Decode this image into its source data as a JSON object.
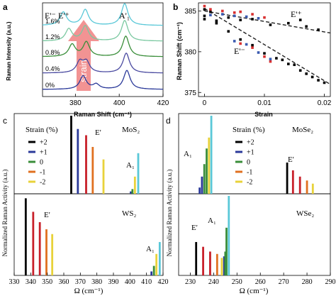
{
  "colors": {
    "strain_plus2": "#000000",
    "strain_plus1": "#2b3a9a",
    "strain_0": "#3a8e3a",
    "strain_minus1": "#e07020",
    "strain_minus2": "#e8d23a",
    "ws_plus1": "#c8202a",
    "ws_plus2": "#000000",
    "cyan": "#5ac8d8",
    "arrow": "#f08080"
  },
  "chart_data": [
    {
      "id": "a",
      "type": "line",
      "panel_label": "a",
      "xlabel": "Raman Shift (cm⁻¹)",
      "ylabel": "Raman Intensity (a.u.)",
      "xlim": [
        365,
        420
      ],
      "x_ticks": [
        "380",
        "400",
        "420"
      ],
      "x_tick_values": [
        380,
        400,
        420
      ],
      "peak_labels": [
        "E'⁻",
        "E'⁺",
        "A'₁"
      ],
      "arrow_text": "strain",
      "series": [
        {
          "name": "0%",
          "color": "#2b3a9a",
          "peaks": [
            [
              383.5,
              0.55
            ],
            [
              389.5,
              0.2
            ],
            [
              403.5,
              0.78
            ]
          ]
        },
        {
          "name": "0.4%",
          "color": "#4a4aa0",
          "peaks": [
            [
              382.0,
              0.45
            ],
            [
              385.0,
              0.45
            ],
            [
              403.2,
              0.82
            ]
          ]
        },
        {
          "name": "0.8%",
          "color": "#3a8e3a",
          "peaks": [
            [
              378.5,
              0.5
            ],
            [
              385.0,
              0.6
            ],
            [
              403.0,
              0.85
            ]
          ]
        },
        {
          "name": "1.2%",
          "color": "#7ac8a0",
          "peaks": [
            [
              377.0,
              0.5
            ],
            [
              384.5,
              0.62
            ],
            [
              402.5,
              0.85
            ]
          ]
        },
        {
          "name": "1.6%",
          "color": "#5ac8d8",
          "peaks": [
            [
              374.5,
              0.55
            ],
            [
              384.5,
              0.65
            ],
            [
              402.5,
              0.9
            ]
          ]
        }
      ]
    },
    {
      "id": "b",
      "type": "scatter",
      "panel_label": "b",
      "xlabel": "Strain",
      "ylabel": "Raman Shift (cm⁻¹)",
      "xlim": [
        -0.001,
        0.021
      ],
      "ylim": [
        374.5,
        386.0
      ],
      "x_ticks": [
        "0",
        "0.01",
        "0.02"
      ],
      "x_tick_values": [
        0,
        0.01,
        0.02
      ],
      "y_ticks": [
        "375",
        "380",
        "385"
      ],
      "y_tick_values": [
        375,
        380,
        385
      ],
      "annotations": [
        "E'⁺",
        "E'⁻"
      ],
      "series": [
        {
          "name": "E'+ black",
          "color": "#000000",
          "points": [
            [
              0,
              385.2
            ],
            [
              0,
              384.4
            ],
            [
              0.001,
              384.9
            ],
            [
              0.002,
              383.8
            ],
            [
              0.004,
              384.2
            ],
            [
              0.006,
              383.9
            ],
            [
              0.008,
              384.0
            ],
            [
              0.011,
              383.3
            ],
            [
              0.014,
              383.5
            ],
            [
              0.016,
              383.9
            ],
            [
              0.017,
              383.1
            ],
            [
              0.019,
              382.7
            ]
          ]
        },
        {
          "name": "E'+ red",
          "color": "#d83030",
          "points": [
            [
              0,
              385.6
            ],
            [
              0.001,
              385.2
            ],
            [
              0.003,
              385.0
            ],
            [
              0.005,
              384.8
            ],
            [
              0.006,
              384.9
            ],
            [
              0.008,
              384.6
            ],
            [
              0.01,
              384.2
            ]
          ]
        },
        {
          "name": "E'+ blue",
          "color": "#3a5ab0",
          "points": [
            [
              0.001,
              384.5
            ],
            [
              0.003,
              384.6
            ],
            [
              0.005,
              384.4
            ],
            [
              0.007,
              384.3
            ],
            [
              0.009,
              384.1
            ]
          ]
        },
        {
          "name": "E'- black",
          "color": "#000000",
          "points": [
            [
              0,
              384.0
            ],
            [
              0.002,
              383.5
            ],
            [
              0.004,
              382.5
            ],
            [
              0.006,
              381.5
            ],
            [
              0.008,
              380.8
            ],
            [
              0.01,
              379.8
            ],
            [
              0.012,
              379.2
            ],
            [
              0.013,
              379.0
            ],
            [
              0.014,
              378.5
            ],
            [
              0.015,
              378.4
            ],
            [
              0.016,
              377.7
            ],
            [
              0.017,
              377.3
            ],
            [
              0.018,
              376.9
            ],
            [
              0.019,
              376.5
            ],
            [
              0.02,
              376.2
            ]
          ]
        },
        {
          "name": "E'- red",
          "color": "#d83030",
          "points": [
            [
              0.006,
              381.0
            ],
            [
              0.008,
              380.5
            ],
            [
              0.01,
              379.4
            ],
            [
              0.011,
              378.8
            ]
          ]
        },
        {
          "name": "E'- blue",
          "color": "#3a5ab0",
          "points": [
            [
              0.005,
              381.3
            ],
            [
              0.007,
              380.9
            ],
            [
              0.009,
              379.9
            ],
            [
              0.011,
              379.1
            ]
          ]
        }
      ],
      "fits": [
        {
          "from": [
            0,
            385.0
          ],
          "to": [
            0.021,
            382.3
          ]
        },
        {
          "from": [
            0,
            385.3
          ],
          "to": [
            0.021,
            376.0
          ]
        }
      ]
    },
    {
      "id": "c",
      "type": "bar",
      "panel_label": "c",
      "xlabel": "Ω (cm⁻¹)",
      "ylabel": "Normalized Raman Activity (a.u.)",
      "xlim": [
        330,
        420
      ],
      "x_ticks": [
        "330",
        "340",
        "350",
        "360",
        "370",
        "380",
        "390",
        "400",
        "410",
        "420"
      ],
      "x_tick_values": [
        330,
        340,
        350,
        360,
        370,
        380,
        390,
        400,
        410,
        420
      ],
      "legend_title": "Strain (%)",
      "legend_labels": [
        "+2",
        "+1",
        "0",
        "-1",
        "-2"
      ],
      "subplots": [
        {
          "material": "MoS₂",
          "mode_labels": [
            "E'",
            "A₁"
          ],
          "bars": [
            {
              "x": 364.5,
              "h": 1.0,
              "c": "#000000"
            },
            {
              "x": 368.5,
              "h": 0.83,
              "c": "#2b3a9a"
            },
            {
              "x": 373.5,
              "h": 0.75,
              "c": "#c8202a"
            },
            {
              "x": 377.5,
              "h": 0.6,
              "c": "#e07020"
            },
            {
              "x": 384.0,
              "h": 0.44,
              "c": "#e8d23a"
            },
            {
              "x": 400.5,
              "h": 0.03,
              "c": "#2b3a9a"
            },
            {
              "x": 401.5,
              "h": 0.06,
              "c": "#3a8e3a"
            },
            {
              "x": 403.0,
              "h": 0.22,
              "c": "#e8d23a"
            },
            {
              "x": 405.0,
              "h": 0.52,
              "c": "#5ac8d8"
            }
          ]
        },
        {
          "material": "WS₂",
          "mode_labels": [
            "E'",
            "A₁"
          ],
          "bars": [
            {
              "x": 337.0,
              "h": 0.97,
              "c": "#000000"
            },
            {
              "x": 341.5,
              "h": 0.8,
              "c": "#c8202a"
            },
            {
              "x": 345.5,
              "h": 0.67,
              "c": "#c8202a"
            },
            {
              "x": 349.5,
              "h": 0.58,
              "c": "#e07020"
            },
            {
              "x": 353.0,
              "h": 0.52,
              "c": "#e8d23a"
            },
            {
              "x": 413.0,
              "h": 0.05,
              "c": "#2b3a9a"
            },
            {
              "x": 414.5,
              "h": 0.12,
              "c": "#3a8e3a"
            },
            {
              "x": 416.0,
              "h": 0.27,
              "c": "#e8d23a"
            },
            {
              "x": 418.0,
              "h": 0.42,
              "c": "#5ac8d8"
            }
          ]
        }
      ]
    },
    {
      "id": "d",
      "type": "bar",
      "panel_label": "d",
      "xlabel": "Ω (cm⁻¹)",
      "ylabel": "Normalized Raman Activity (a.u.)",
      "xlim": [
        225,
        290
      ],
      "x_ticks": [
        "230",
        "240",
        "250",
        "260",
        "270",
        "280",
        "290"
      ],
      "x_tick_values": [
        230,
        240,
        250,
        260,
        270,
        280,
        290
      ],
      "legend_title": "Strain (%)",
      "legend_labels": [
        "+2",
        "+1",
        "0",
        "-1",
        "-2"
      ],
      "subplots": [
        {
          "material": "MoSe₂",
          "mode_labels": [
            "A₁",
            "E'"
          ],
          "bars": [
            {
              "x": 234.0,
              "h": 0.08,
              "c": "#2b3a9a"
            },
            {
              "x": 235.0,
              "h": 0.22,
              "c": "#2b3a9a"
            },
            {
              "x": 236.0,
              "h": 0.38,
              "c": "#3a8e3a"
            },
            {
              "x": 237.0,
              "h": 0.58,
              "c": "#3a8e3a"
            },
            {
              "x": 238.0,
              "h": 0.72,
              "c": "#e8d23a"
            },
            {
              "x": 239.0,
              "h": 1.0,
              "c": "#5ac8d8"
            },
            {
              "x": 271.5,
              "h": 0.4,
              "c": "#000000"
            },
            {
              "x": 274.0,
              "h": 0.3,
              "c": "#c8202a"
            },
            {
              "x": 277.0,
              "h": 0.22,
              "c": "#c8202a"
            },
            {
              "x": 280.0,
              "h": 0.17,
              "c": "#e07020"
            },
            {
              "x": 282.5,
              "h": 0.13,
              "c": "#e8d23a"
            }
          ]
        },
        {
          "material": "WSe₂",
          "mode_labels": [
            "E'",
            "A₁"
          ],
          "bars": [
            {
              "x": 232.5,
              "h": 0.42,
              "c": "#000000"
            },
            {
              "x": 235.5,
              "h": 0.36,
              "c": "#c8202a"
            },
            {
              "x": 238.5,
              "h": 0.3,
              "c": "#c8202a"
            },
            {
              "x": 241.5,
              "h": 0.27,
              "c": "#e07020"
            },
            {
              "x": 243.5,
              "h": 0.22,
              "c": "#e8d23a"
            },
            {
              "x": 244.5,
              "h": 0.24,
              "c": "#2b3a9a"
            },
            {
              "x": 245.0,
              "h": 0.3,
              "c": "#3a8e3a"
            },
            {
              "x": 245.5,
              "h": 0.6,
              "c": "#3a8e3a"
            },
            {
              "x": 246.5,
              "h": 1.0,
              "c": "#5ac8d8"
            }
          ]
        }
      ]
    }
  ]
}
